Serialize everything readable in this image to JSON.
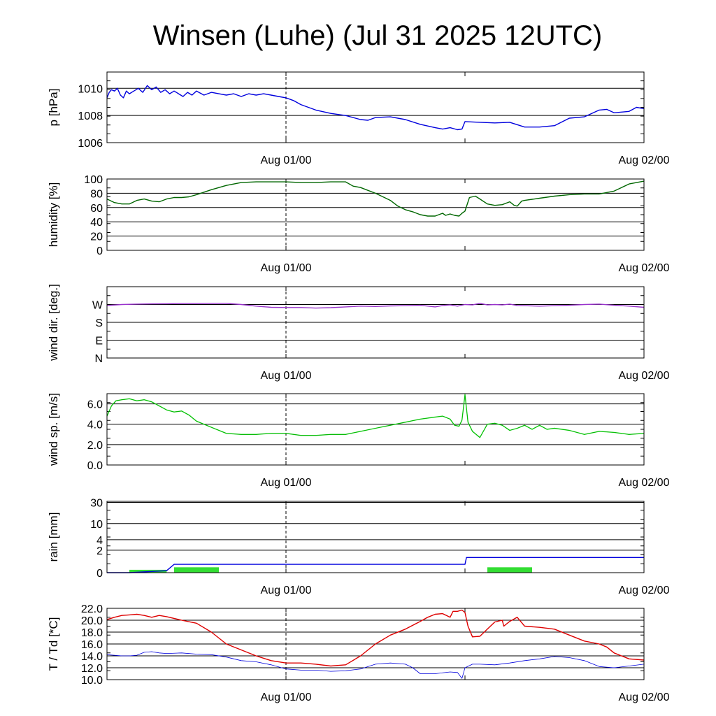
{
  "title": "Winsen (Luhe) (Jul 31 2025 12UTC)",
  "x_tick_labels": [
    "Aug 01/00",
    "Aug 02/00"
  ],
  "chart_data": [
    {
      "type": "line",
      "ylabel": "p [hPa]",
      "x_unit": "hours since Jul 31 12UTC",
      "xlim": [
        0,
        36
      ],
      "ylim": [
        1006,
        1011.2
      ],
      "yticks": [
        1006,
        1008,
        1010
      ],
      "ytick_labels": [
        "1006",
        "1008",
        "1010"
      ],
      "series": [
        {
          "color": "#0000dd",
          "x": [
            0,
            0.15,
            0.3,
            0.5,
            0.7,
            0.9,
            1.1,
            1.3,
            1.5,
            1.8,
            2.1,
            2.4,
            2.7,
            3,
            3.3,
            3.6,
            3.9,
            4.2,
            4.5,
            4.8,
            5.1,
            5.4,
            5.7,
            6,
            6.5,
            7,
            7.5,
            8,
            8.5,
            9,
            9.5,
            10,
            10.5,
            11,
            11.5,
            12,
            12.5,
            13,
            14,
            15,
            16,
            17,
            17.5,
            18,
            19,
            20,
            21,
            22,
            22.5,
            23,
            23.5,
            23.8,
            24,
            25,
            26,
            27,
            28,
            29,
            30,
            31,
            32,
            33,
            33.5,
            34,
            35,
            35.5,
            36
          ],
          "y": [
            1009.3,
            1009.7,
            1009.9,
            1009.8,
            1010,
            1009.5,
            1009.3,
            1009.8,
            1009.6,
            1009.8,
            1010,
            1009.7,
            1010.2,
            1009.9,
            1010.1,
            1009.7,
            1009.9,
            1009.6,
            1009.8,
            1009.6,
            1009.4,
            1009.7,
            1009.5,
            1009.8,
            1009.5,
            1009.7,
            1009.6,
            1009.5,
            1009.6,
            1009.4,
            1009.6,
            1009.5,
            1009.6,
            1009.5,
            1009.4,
            1009.3,
            1009.1,
            1008.8,
            1008.4,
            1008.15,
            1008.0,
            1007.7,
            1007.65,
            1007.85,
            1007.9,
            1007.7,
            1007.35,
            1007.1,
            1007.0,
            1007.1,
            1006.95,
            1007.0,
            1007.55,
            1007.5,
            1007.45,
            1007.5,
            1007.15,
            1007.15,
            1007.25,
            1007.8,
            1007.9,
            1008.4,
            1008.45,
            1008.2,
            1008.3,
            1008.6,
            1008.5
          ]
        }
      ]
    },
    {
      "type": "line",
      "ylabel": "humidity [%]",
      "x_unit": "hours since Jul 31 12UTC",
      "xlim": [
        0,
        36
      ],
      "ylim": [
        0,
        100
      ],
      "yticks": [
        0,
        20,
        40,
        60,
        80,
        100
      ],
      "ytick_labels": [
        "0",
        "20",
        "40",
        "60",
        "80",
        "100"
      ],
      "series": [
        {
          "color": "#006600",
          "x": [
            0,
            0.5,
            1,
            1.5,
            2,
            2.5,
            3,
            3.5,
            4,
            4.5,
            5,
            5.5,
            6,
            7,
            8,
            9,
            10,
            11,
            12,
            13,
            14,
            15,
            16,
            16.5,
            17,
            17.5,
            18,
            18.5,
            19,
            19.5,
            20,
            20.5,
            21,
            21.5,
            22,
            22.5,
            22.7,
            23,
            23.3,
            23.6,
            23.8,
            24,
            24.3,
            24.7,
            25,
            25.5,
            26,
            26.5,
            27,
            27.3,
            27.5,
            27.8,
            28,
            29,
            30,
            31,
            32,
            33,
            34,
            35,
            36
          ],
          "y": [
            72,
            67,
            65,
            65,
            70,
            72,
            69,
            68,
            72,
            74,
            74,
            75,
            78,
            85,
            91,
            95,
            96,
            96,
            96,
            95,
            95,
            96,
            96,
            90,
            88,
            84,
            80,
            75,
            70,
            62,
            57,
            54,
            50,
            48,
            48,
            52,
            49,
            51,
            49,
            48,
            52,
            55,
            74,
            76,
            72,
            65,
            63,
            64,
            68,
            63,
            62,
            69,
            70,
            73,
            76,
            78,
            79,
            79,
            83,
            93,
            97
          ]
        }
      ]
    },
    {
      "type": "line",
      "ylabel": "wind dir. [deg.]",
      "x_unit": "hours since Jul 31 12UTC",
      "xlim": [
        0,
        36
      ],
      "ylim": [
        0,
        360
      ],
      "yticks": [
        0,
        90,
        180,
        270
      ],
      "ytick_labels": [
        "N",
        "E",
        "S",
        "W"
      ],
      "series": [
        {
          "color": "#9933cc",
          "x": [
            0,
            1,
            2,
            3,
            4,
            5,
            6,
            7,
            8,
            9,
            10,
            11,
            12,
            13,
            14,
            15,
            16,
            17,
            18,
            19,
            20,
            21,
            22,
            22.5,
            23,
            23.5,
            24,
            24.5,
            25,
            25.5,
            26,
            26.5,
            27,
            27.5,
            28,
            29,
            30,
            31,
            32,
            33,
            34,
            35,
            36
          ],
          "y": [
            265,
            270,
            272,
            273,
            274,
            275,
            275,
            276,
            276,
            270,
            262,
            256,
            255,
            255,
            252,
            254,
            258,
            262,
            260,
            263,
            264,
            266,
            258,
            265,
            268,
            262,
            270,
            268,
            276,
            268,
            270,
            268,
            272,
            265,
            264,
            262,
            264,
            266,
            270,
            272,
            266,
            262,
            256
          ]
        }
      ]
    },
    {
      "type": "line",
      "ylabel": "wind sp. [m/s]",
      "x_unit": "hours since Jul 31 12UTC",
      "xlim": [
        0,
        36
      ],
      "ylim": [
        0,
        7
      ],
      "yticks": [
        0,
        2,
        4,
        6
      ],
      "ytick_labels": [
        "0.0",
        "2.0",
        "4.0",
        "6.0"
      ],
      "series": [
        {
          "color": "#33ee33",
          "x": [
            0,
            0.3,
            0.6,
            1,
            1.5,
            2,
            2.5,
            3,
            3.5,
            4,
            4.5,
            5,
            5.5,
            6,
            7,
            8,
            9,
            10,
            11,
            12,
            13,
            14,
            15,
            16,
            17,
            18,
            19,
            20,
            21,
            22,
            22.5,
            23,
            23.3,
            23.6,
            23.8,
            24,
            24.2,
            24.5,
            25,
            25.5,
            26,
            26.5,
            27,
            27.5,
            28,
            28.5,
            29,
            29.5,
            30,
            31,
            32,
            33,
            34,
            35,
            36
          ],
          "y": [
            4.8,
            5.8,
            6.3,
            6.4,
            6.5,
            6.3,
            6.4,
            6.2,
            5.8,
            5.4,
            5.2,
            5.3,
            4.9,
            4.3,
            3.7,
            3.1,
            3.0,
            3.0,
            3.1,
            3.1,
            2.9,
            2.9,
            3.0,
            3.0,
            3.3,
            3.6,
            3.9,
            4.2,
            4.5,
            4.7,
            4.8,
            4.5,
            3.9,
            3.8,
            4.4,
            6.9,
            4.2,
            3.3,
            2.7,
            4.0,
            4.1,
            3.9,
            3.4,
            3.6,
            3.9,
            3.5,
            3.9,
            3.5,
            3.6,
            3.4,
            3.0,
            3.3,
            3.2,
            3.0,
            3.1
          ]
        },
        {
          "color": "#00aa00",
          "x": [
            0,
            0.3,
            0.6,
            1,
            1.5,
            2,
            2.5,
            3,
            3.5,
            4,
            4.5,
            5,
            5.5,
            6,
            7,
            8,
            9,
            10,
            11,
            12,
            13,
            14,
            15,
            16,
            17,
            18,
            19,
            20,
            21,
            22,
            22.5,
            23,
            23.3,
            23.6,
            23.8,
            24,
            24.2,
            24.5,
            25,
            25.5,
            26,
            26.5,
            27,
            27.5,
            28,
            28.5,
            29,
            29.5,
            30,
            31,
            32,
            33,
            34,
            35,
            36
          ],
          "y": [
            4.8,
            5.8,
            6.3,
            6.4,
            6.5,
            6.3,
            6.4,
            6.2,
            5.8,
            5.4,
            5.2,
            5.3,
            4.9,
            4.3,
            3.7,
            3.1,
            3.0,
            3.0,
            3.1,
            3.1,
            2.9,
            2.9,
            3.0,
            3.0,
            3.3,
            3.6,
            3.9,
            4.2,
            4.5,
            4.7,
            4.8,
            4.5,
            3.9,
            3.8,
            4.4,
            6.9,
            4.2,
            3.3,
            2.7,
            4.0,
            4.1,
            3.9,
            3.4,
            3.6,
            3.9,
            3.5,
            3.9,
            3.5,
            3.6,
            3.4,
            3.0,
            3.3,
            3.2,
            3.0,
            3.1
          ]
        }
      ]
    },
    {
      "type": "line",
      "ylabel": "rain [mm]",
      "x_unit": "hours since Jul 31 12UTC",
      "xlim": [
        0,
        36
      ],
      "ylim": [
        0,
        31.6
      ],
      "yticks": [
        0,
        2,
        4,
        10,
        30
      ],
      "ytick_labels": [
        "0",
        "2",
        "4",
        "10",
        "30"
      ],
      "series": [
        {
          "color": "#0000dd",
          "x": [
            0,
            1.5,
            4,
            4.5,
            12,
            24,
            24.1,
            36
          ],
          "y": [
            0,
            0,
            0.1,
            0.5,
            0.5,
            0.5,
            1.1,
            1.1
          ]
        }
      ],
      "bars": [
        {
          "color": "#33dd33",
          "x0": 1.5,
          "x1": 4.0,
          "value": 0.15
        },
        {
          "color": "#33dd33",
          "x0": 4.5,
          "x1": 7.5,
          "value": 0.3
        },
        {
          "color": "#33dd33",
          "x0": 25.5,
          "x1": 28.5,
          "value": 0.3
        }
      ]
    },
    {
      "type": "line",
      "ylabel": "T / Td [*C]",
      "x_unit": "hours since Jul 31 12UTC",
      "xlim": [
        0,
        36
      ],
      "ylim": [
        10,
        22
      ],
      "yticks": [
        10,
        12,
        14,
        16,
        18,
        20,
        22
      ],
      "ytick_labels": [
        "10.0",
        "12.0",
        "14.0",
        "16.0",
        "18.0",
        "20.0",
        "22.0"
      ],
      "series": [
        {
          "color": "#dd0000",
          "x": [
            0,
            0.5,
            1,
            1.5,
            2,
            2.5,
            3,
            3.5,
            4,
            5,
            6,
            7,
            8,
            9,
            10,
            11,
            12,
            13,
            14,
            15,
            16,
            17,
            18,
            19,
            20,
            21,
            21.5,
            22,
            22.5,
            23,
            23.2,
            23.5,
            23.8,
            24,
            24.2,
            24.5,
            25,
            26,
            26.5,
            26.6,
            27,
            27.5,
            28,
            29,
            30,
            31,
            32,
            33,
            33.5,
            34,
            35,
            36
          ],
          "y": [
            20.1,
            20.5,
            20.8,
            20.9,
            21.0,
            20.8,
            20.5,
            20.8,
            20.6,
            20.0,
            19.5,
            18.0,
            16.0,
            15.0,
            14.0,
            13.2,
            12.8,
            12.8,
            12.6,
            12.3,
            12.5,
            14.0,
            16.0,
            17.5,
            18.5,
            19.8,
            20.5,
            21.0,
            21.1,
            20.5,
            21.5,
            21.5,
            21.7,
            21.3,
            19.0,
            17.2,
            17.3,
            19.7,
            20.0,
            19.0,
            19.8,
            20.5,
            19.0,
            18.8,
            18.5,
            17.5,
            16.5,
            16.0,
            15.5,
            14.5,
            13.5,
            13.3
          ]
        },
        {
          "color": "#0000dd",
          "x": [
            0,
            1,
            1.5,
            2,
            2.5,
            3,
            3.5,
            4,
            5,
            6,
            7,
            8,
            9,
            10,
            11,
            12,
            13,
            14,
            15,
            16,
            17,
            18,
            19,
            20,
            20.5,
            21,
            22,
            23,
            23.5,
            23.8,
            24,
            24.5,
            25,
            26,
            27,
            28,
            29,
            30,
            31,
            32,
            33,
            34,
            35,
            36
          ],
          "y": [
            14.2,
            14.0,
            14.0,
            14.1,
            14.6,
            14.7,
            14.5,
            14.4,
            14.5,
            14.3,
            14.2,
            13.8,
            13.2,
            13.0,
            12.5,
            11.8,
            11.6,
            11.6,
            11.4,
            11.5,
            11.8,
            12.6,
            12.8,
            12.6,
            12.0,
            11.0,
            11.0,
            11.3,
            11.2,
            10.2,
            12.0,
            12.6,
            12.6,
            12.5,
            12.8,
            13.2,
            13.5,
            13.9,
            13.7,
            13.2,
            12.2,
            12.0,
            12.3,
            12.6
          ]
        }
      ]
    }
  ]
}
